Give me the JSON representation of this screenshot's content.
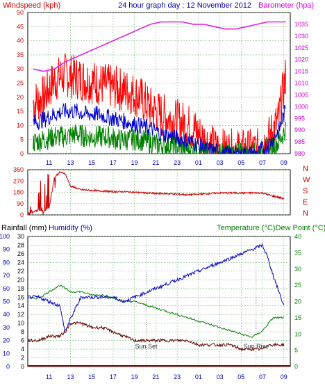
{
  "header": {
    "title": "24 hour graph day : 12 November 2012",
    "left_label": "Windspeed (kph)",
    "right_label": "Barometer (hpa)",
    "bottom_left_label": "Rainfall (mm)",
    "bottom_humidity_label": "Humidity (%)",
    "bottom_right_label": "Temperature (°C)Dew Point (°C)"
  },
  "colors": {
    "windspeed": "#ff0000",
    "gust": "#ff0000",
    "avg_wind": "#0000cc",
    "wind_low": "#008000",
    "barometer": "#e020e0",
    "wind_dir": "#cc0000",
    "temperature": "#008000",
    "humidity": "#0000cc",
    "dewpoint": "#660000",
    "rain": "#990000",
    "grid": "#7ab87a",
    "axis_left_red": "#cc0000",
    "axis_blue": "#0000aa",
    "axis_green": "#008000",
    "axis_magenta": "#cc00cc"
  },
  "x_ticks": [
    "11",
    "13",
    "15",
    "17",
    "19",
    "21",
    "23",
    "01",
    "03",
    "05",
    "07",
    "09"
  ],
  "annotations": {
    "sunset": "Sun Set",
    "sunrise": "Sun Rise"
  },
  "chart_data": [
    {
      "type": "line",
      "title": "24 hour graph day : 12 November 2012",
      "ylabel": "Windspeed (kph)",
      "y2label": "Barometer (hpa)",
      "x_hours": [
        9.5,
        10.5,
        11.5,
        12.5,
        13.5,
        14.5,
        15.5,
        16.5,
        17.5,
        18.5,
        19.5,
        20.5,
        21.5,
        22.5,
        23.5,
        24.5,
        25.5,
        26.5,
        27.5,
        28.5,
        29.5,
        30.5,
        31.5,
        32.5,
        33.2
      ],
      "ylim": [
        0,
        50
      ],
      "y2lim": [
        980,
        1040
      ],
      "y_ticks": [
        0,
        5,
        10,
        15,
        20,
        25,
        30,
        35,
        40,
        45,
        50
      ],
      "y2_ticks": [
        980,
        985,
        990,
        995,
        1000,
        1005,
        1010,
        1015,
        1020,
        1025,
        1030,
        1035
      ],
      "series": [
        {
          "name": "Gust",
          "values": [
            18,
            20,
            26,
            28,
            27,
            26,
            25,
            24,
            23,
            22,
            20,
            16,
            14,
            12,
            11,
            9,
            5,
            2,
            1,
            1,
            1,
            1,
            5,
            12,
            28
          ]
        },
        {
          "name": "Average",
          "values": [
            11,
            12,
            14,
            15,
            15,
            14,
            14,
            13,
            12,
            11,
            10,
            9,
            7,
            6,
            5,
            4,
            2,
            1,
            0,
            0,
            0,
            0,
            3,
            8,
            16
          ]
        },
        {
          "name": "Low",
          "values": [
            4,
            5,
            6,
            6,
            7,
            6,
            6,
            6,
            5,
            5,
            5,
            4,
            3,
            3,
            2,
            1,
            0,
            0,
            0,
            0,
            0,
            0,
            2,
            4,
            9
          ]
        },
        {
          "name": "Barometer",
          "values": [
            1016,
            1015,
            1016,
            1019,
            1021,
            1023,
            1025,
            1027,
            1029,
            1031,
            1033,
            1035,
            1036,
            1036,
            1036,
            1035,
            1035,
            1034,
            1033,
            1033,
            1034,
            1035,
            1036,
            1036,
            1036
          ]
        }
      ]
    },
    {
      "type": "scatter",
      "ylabel": "Wind direction",
      "y_ticks": [
        0,
        90,
        180,
        270,
        360
      ],
      "y_tick_labels": [
        "0",
        "90",
        "180",
        "270",
        "360"
      ],
      "compass_labels": [
        "N",
        "W",
        "S",
        "E",
        "N"
      ],
      "ylim": [
        0,
        360
      ],
      "x_hours": [
        9.0,
        9.5,
        10.0,
        10.5,
        11.0,
        11.5,
        12.0,
        12.5,
        13.0,
        14.0,
        15.0,
        16.0,
        17.0,
        18.0,
        19.0,
        20.0,
        21.0,
        22.0,
        23.0,
        24.0,
        25.0,
        26.0,
        27.0,
        28.0,
        29.0,
        30.0,
        31.0,
        32.0,
        33.0
      ],
      "series": [
        {
          "name": "Direction",
          "values": [
            10,
            20,
            40,
            30,
            60,
            300,
            340,
            330,
            230,
            200,
            195,
            190,
            185,
            185,
            180,
            175,
            170,
            170,
            165,
            160,
            165,
            170,
            175,
            175,
            175,
            175,
            175,
            150,
            130
          ]
        }
      ]
    },
    {
      "type": "line",
      "ylabel": "Rainfall (mm)",
      "y2label": "Temperature (°C)Dew Point (°C)",
      "x_hours": [
        9.0,
        10.0,
        11.0,
        12.0,
        12.5,
        13.0,
        14.0,
        15.0,
        16.0,
        17.0,
        18.0,
        19.0,
        20.0,
        21.0,
        22.0,
        23.0,
        24.0,
        25.0,
        26.0,
        27.0,
        28.0,
        29.0,
        30.0,
        31.0,
        31.5,
        32.0,
        33.0
      ],
      "rain_ylim": [
        0,
        100
      ],
      "rain_ticks": [
        0,
        10,
        20,
        30,
        40,
        50,
        60,
        70,
        80,
        90,
        100
      ],
      "humidity_ylim": [
        0,
        30
      ],
      "humidity_ticks": [
        0,
        2,
        4,
        6,
        8,
        10,
        12,
        14,
        16,
        18,
        20,
        22,
        24,
        26,
        28,
        30
      ],
      "temp_ylim": [
        0,
        40
      ],
      "temp_ticks": [
        0,
        5,
        10,
        15,
        20,
        25,
        30,
        35,
        40
      ],
      "series": [
        {
          "name": "Temperature",
          "values": [
            21,
            21,
            23,
            25,
            24,
            23,
            23,
            22,
            22,
            21,
            20,
            20,
            19,
            18,
            17,
            16,
            15,
            14,
            13,
            12,
            11,
            10,
            9,
            11,
            13,
            15,
            15
          ]
        },
        {
          "name": "Humidity",
          "values": [
            16,
            16,
            15,
            14,
            8,
            11,
            16,
            16,
            16,
            16,
            15,
            16,
            17,
            18,
            19,
            20,
            21,
            22,
            23,
            24,
            25,
            26,
            27,
            28,
            25,
            21,
            14
          ]
        },
        {
          "name": "Dew Point",
          "values": [
            6,
            6,
            7,
            7,
            8,
            10,
            10,
            9,
            9,
            8,
            7,
            6,
            6,
            6,
            6,
            6,
            6,
            5,
            5,
            5,
            5,
            4,
            4,
            4,
            5,
            5,
            5
          ]
        },
        {
          "name": "Rainfall",
          "values": [
            0,
            0,
            0,
            0,
            0,
            0,
            0,
            0,
            0,
            0,
            0,
            0,
            0,
            0,
            0,
            0,
            0,
            0,
            0,
            0,
            0,
            0,
            0,
            0,
            0,
            0,
            0
          ]
        }
      ]
    }
  ]
}
